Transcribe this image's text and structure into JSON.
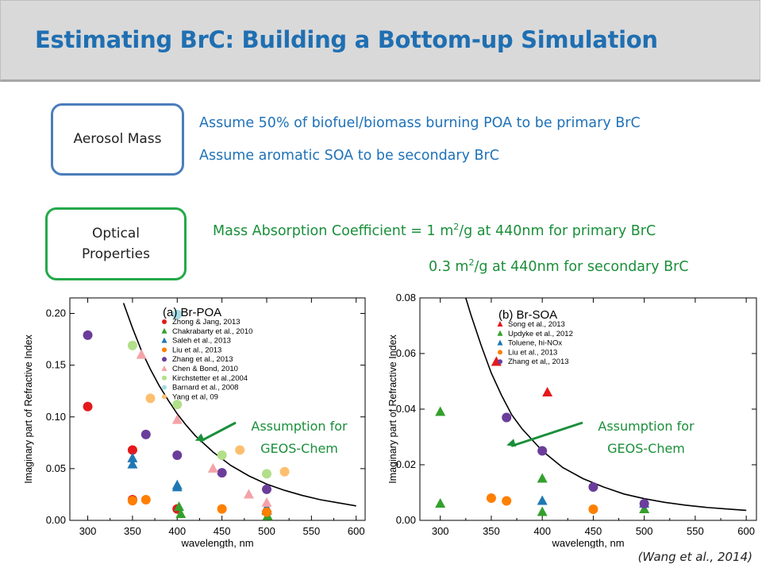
{
  "title": "Estimating BrC: Building a Bottom-up Simulation",
  "boxes": {
    "aerosol_mass": "Aerosol Mass",
    "optical_line1": "Optical",
    "optical_line2": "Properties"
  },
  "statements": {
    "poa": "Assume 50% of biofuel/biomass burning POA to be primary BrC",
    "soa": "Assume aromatic SOA to be secondary BrC",
    "mac_prefix": "Mass Absorption Coefficient = 1 m",
    "mac_sup": "2",
    "mac_suffix": "/g at 440nm for primary BrC",
    "mac2_prefix": "0.3 m",
    "mac2_sup": "2",
    "mac2_suffix": "/g at 440nm for secondary BrC"
  },
  "citation": "(Wang et al., 2014)",
  "colors": {
    "title": "#1f6fb2",
    "blue_text": "#1f72b8",
    "green_text": "#1a8f3a",
    "box_blue": "#4a7ebb",
    "box_green": "#25a84a"
  },
  "chart_data": [
    {
      "type": "scatter",
      "title": "(a) Br-POA",
      "xlabel": "wavelength, nm",
      "ylabel": "Imaginary part of Refractive Index",
      "xlim": [
        280,
        610
      ],
      "ylim": [
        0,
        0.215
      ],
      "xticks": [
        300,
        350,
        400,
        450,
        500,
        550,
        600
      ],
      "yticks": [
        0.0,
        0.05,
        0.1,
        0.15,
        0.2
      ],
      "ytick_labels": [
        "0.00",
        "0.05",
        "0.10",
        "0.15",
        "0.20"
      ],
      "curve": {
        "x": [
          340,
          350,
          360,
          370,
          380,
          390,
          400,
          410,
          420,
          440,
          460,
          480,
          500,
          520,
          540,
          560,
          580,
          600
        ],
        "y": [
          0.21,
          0.186,
          0.164,
          0.146,
          0.13,
          0.116,
          0.103,
          0.092,
          0.082,
          0.066,
          0.053,
          0.043,
          0.035,
          0.029,
          0.024,
          0.02,
          0.017,
          0.014
        ]
      },
      "annotation": {
        "line1": "Assumption for",
        "line2": "GEOS-Chem",
        "arrow_to": [
          420,
          0.077
        ]
      },
      "series": [
        {
          "name": "Zhong & Jang, 2013",
          "color": "#e31a1c",
          "marker": "circle",
          "points": [
            [
              300,
              0.11
            ],
            [
              350,
              0.068
            ],
            [
              350,
              0.02
            ],
            [
              400,
              0.011
            ]
          ]
        },
        {
          "name": "Chakrabarty et al., 2010",
          "color": "#33a02c",
          "marker": "triangle",
          "points": [
            [
              402,
              0.013
            ],
            [
              404,
              0.006
            ],
            [
              500,
              0.009
            ],
            [
              501,
              0.004
            ]
          ]
        },
        {
          "name": "Saleh et al., 2013",
          "color": "#1f78b4",
          "marker": "triangle",
          "points": [
            [
              350,
              0.06
            ],
            [
              350,
              0.054
            ],
            [
              400,
              0.034
            ],
            [
              400,
              0.032
            ],
            [
              500,
              0.012
            ],
            [
              500,
              0.01
            ]
          ]
        },
        {
          "name": "Liu et al., 2013",
          "color": "#ff7f00",
          "marker": "circle",
          "points": [
            [
              350,
              0.019
            ],
            [
              365,
              0.02
            ],
            [
              450,
              0.011
            ],
            [
              500,
              0.008
            ]
          ]
        },
        {
          "name": "Zhang et al., 2013",
          "color": "#6a3d9a",
          "marker": "circle",
          "points": [
            [
              300,
              0.179
            ],
            [
              365,
              0.083
            ],
            [
              400,
              0.063
            ],
            [
              450,
              0.046
            ],
            [
              500,
              0.03
            ]
          ]
        },
        {
          "name": "Chen & Bond, 2010",
          "color": "#f4a3a8",
          "marker": "triangle",
          "points": [
            [
              360,
              0.16
            ],
            [
              400,
              0.097
            ],
            [
              440,
              0.05
            ],
            [
              480,
              0.025
            ],
            [
              500,
              0.017
            ]
          ]
        },
        {
          "name": "Kirchstetter et al.,2004",
          "color": "#b2df8a",
          "marker": "circle",
          "points": [
            [
              350,
              0.169
            ],
            [
              400,
              0.112
            ],
            [
              450,
              0.063
            ],
            [
              500,
              0.045
            ]
          ]
        },
        {
          "name": "Barnard et al., 2008",
          "color": "#a6dbe6",
          "marker": "circle",
          "points": [
            [
              400,
              0.199
            ]
          ]
        },
        {
          "name": "Yang et al, 09",
          "color": "#fdbf6f",
          "marker": "circle",
          "points": [
            [
              370,
              0.118
            ],
            [
              470,
              0.068
            ],
            [
              520,
              0.047
            ]
          ]
        }
      ]
    },
    {
      "type": "scatter",
      "title": "(b) Br-SOA",
      "xlabel": "wavelength, nm",
      "ylabel": "Imaginary part of Refractive Index",
      "xlim": [
        280,
        610
      ],
      "ylim": [
        0,
        0.08
      ],
      "xticks": [
        300,
        350,
        400,
        450,
        500,
        550,
        600
      ],
      "yticks": [
        0.0,
        0.02,
        0.04,
        0.06,
        0.08
      ],
      "ytick_labels": [
        "0.00",
        "0.02",
        "0.04",
        "0.06",
        "0.08"
      ],
      "curve": {
        "x": [
          325,
          330,
          340,
          350,
          360,
          370,
          380,
          390,
          400,
          420,
          440,
          460,
          480,
          500,
          520,
          540,
          560,
          580,
          600
        ],
        "y": [
          0.08,
          0.074,
          0.063,
          0.053,
          0.045,
          0.038,
          0.033,
          0.029,
          0.025,
          0.019,
          0.015,
          0.012,
          0.0095,
          0.0078,
          0.0065,
          0.0055,
          0.0047,
          0.0041,
          0.0036
        ]
      },
      "annotation": {
        "line1": "Assumption for",
        "line2": "GEOS-Chem",
        "arrow_to": [
          365,
          0.027
        ]
      },
      "series": [
        {
          "name": "Song et al., 2013",
          "color": "#e31a1c",
          "marker": "triangle",
          "points": [
            [
              355,
              0.057
            ],
            [
              405,
              0.046
            ]
          ]
        },
        {
          "name": "Updyke et al., 2012",
          "color": "#33a02c",
          "marker": "triangle",
          "points": [
            [
              300,
              0.039
            ],
            [
              300,
              0.006
            ],
            [
              400,
              0.015
            ],
            [
              400,
              0.003
            ],
            [
              500,
              0.004
            ]
          ]
        },
        {
          "name": "Toluene, hi-NOx",
          "color": "#1f78b4",
          "marker": "triangle",
          "points": [
            [
              400,
              0.007
            ],
            [
              500,
              0.006
            ]
          ]
        },
        {
          "name": "Liu et al., 2013",
          "color": "#ff7f00",
          "marker": "circle",
          "points": [
            [
              350,
              0.008
            ],
            [
              365,
              0.007
            ],
            [
              450,
              0.004
            ]
          ]
        },
        {
          "name": "Zhang et al,, 2013",
          "color": "#6a3d9a",
          "marker": "circle",
          "points": [
            [
              365,
              0.037
            ],
            [
              400,
              0.025
            ],
            [
              450,
              0.012
            ],
            [
              500,
              0.006
            ]
          ]
        }
      ]
    }
  ]
}
